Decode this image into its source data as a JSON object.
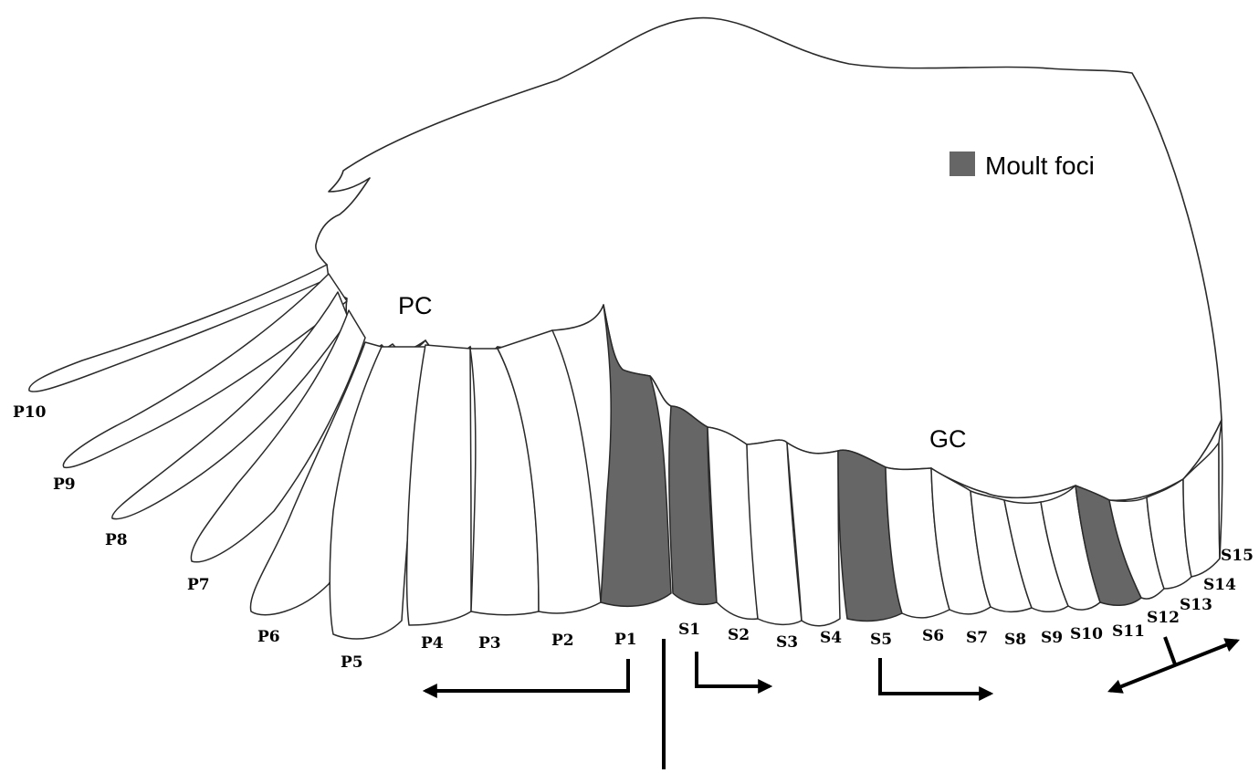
{
  "colors": {
    "moult": "#666666",
    "feather": "#ffffff",
    "stroke": "#2a2a2a",
    "arrow": "#000000"
  },
  "legend": {
    "label": "Moult foci"
  },
  "regions": {
    "primary_coverts": "PC",
    "greater_coverts": "GC"
  },
  "primaries": [
    {
      "label": "P10",
      "moult": false
    },
    {
      "label": "P9",
      "moult": false
    },
    {
      "label": "P8",
      "moult": false
    },
    {
      "label": "P7",
      "moult": false
    },
    {
      "label": "P6",
      "moult": false
    },
    {
      "label": "P5",
      "moult": false
    },
    {
      "label": "P4",
      "moult": false
    },
    {
      "label": "P3",
      "moult": false
    },
    {
      "label": "P2",
      "moult": false
    },
    {
      "label": "P1",
      "moult": true
    }
  ],
  "secondaries": [
    {
      "label": "S1",
      "moult": true
    },
    {
      "label": "S2",
      "moult": false
    },
    {
      "label": "S3",
      "moult": false
    },
    {
      "label": "S4",
      "moult": false
    },
    {
      "label": "S5",
      "moult": true
    },
    {
      "label": "S6",
      "moult": false
    },
    {
      "label": "S7",
      "moult": false
    },
    {
      "label": "S8",
      "moult": false
    },
    {
      "label": "S9",
      "moult": false
    },
    {
      "label": "S10",
      "moult": false
    },
    {
      "label": "S11",
      "moult": true
    },
    {
      "label": "S12",
      "moult": false
    },
    {
      "label": "S13",
      "moult": false
    },
    {
      "label": "S14",
      "moult": false
    },
    {
      "label": "S15",
      "moult": false
    }
  ],
  "moult_directions": [
    {
      "from": "P1",
      "direction": "outward towards P10"
    },
    {
      "from": "S1",
      "direction": "inward towards S15"
    },
    {
      "from": "S5",
      "direction": "inward towards S15"
    },
    {
      "from": "S11",
      "direction": "both directions"
    }
  ]
}
